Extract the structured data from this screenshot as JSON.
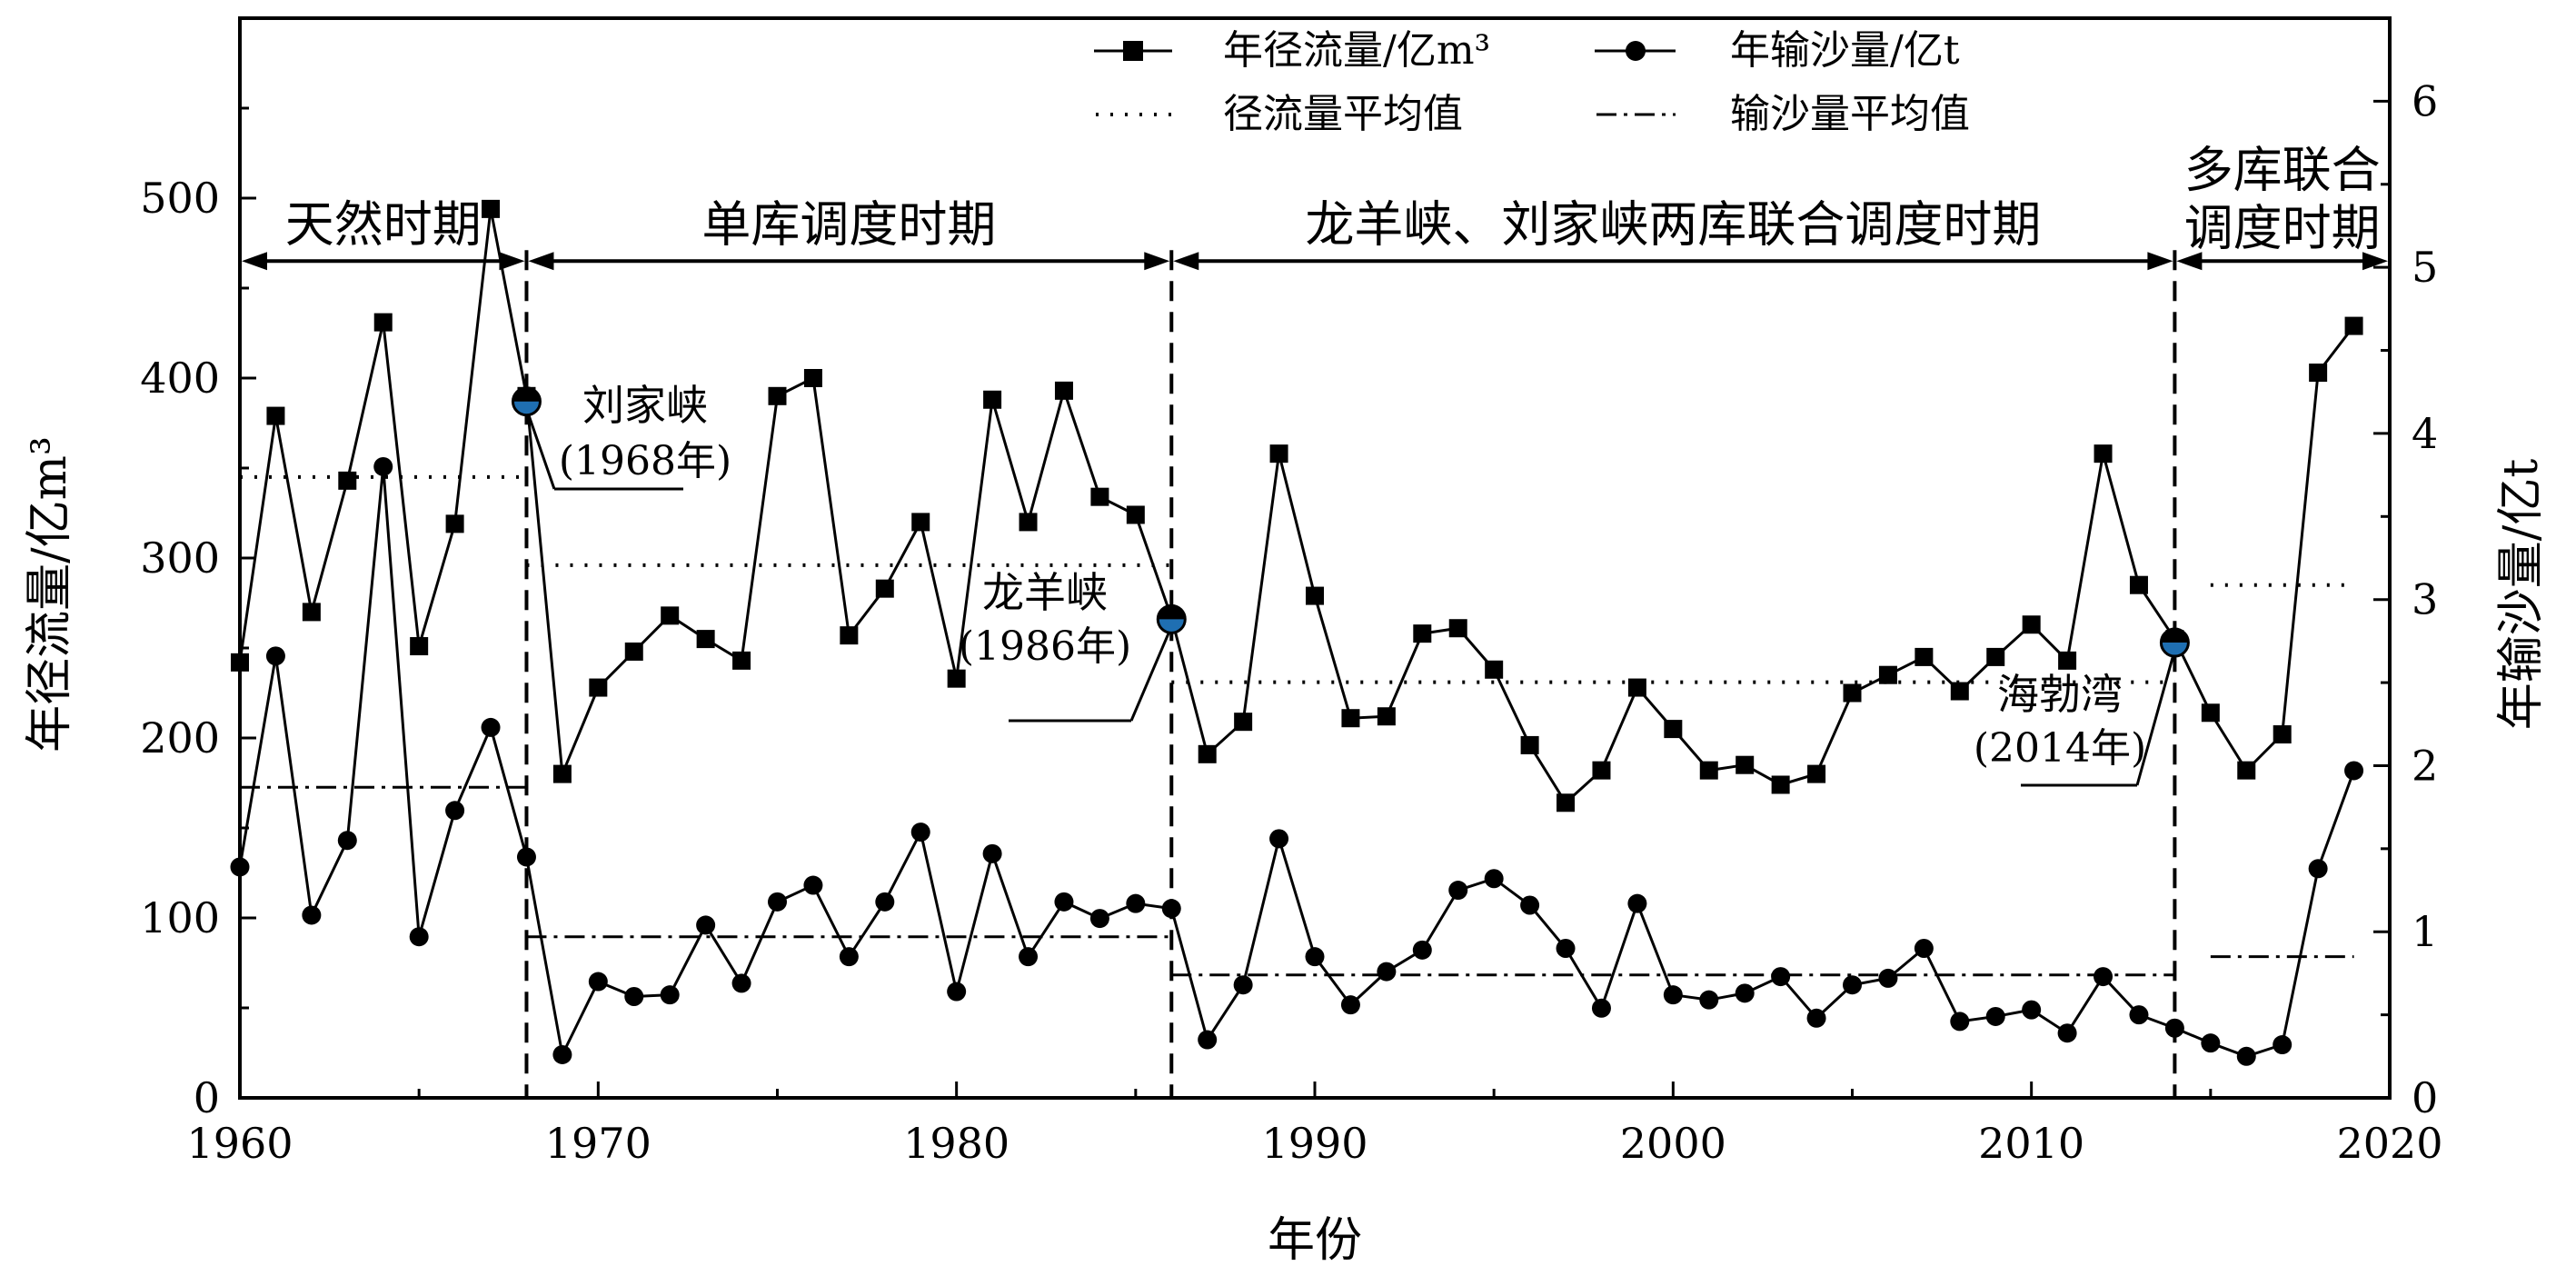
{
  "chart_data": {
    "type": "line",
    "xlabel": "年份",
    "ylabel_left": "年径流量/亿m³",
    "ylabel_right": "年输沙量/亿t",
    "xlim": [
      1960,
      2020
    ],
    "ylim_left": [
      0,
      600
    ],
    "ylim_right": [
      0,
      6.5
    ],
    "x_ticks": [
      1960,
      1970,
      1980,
      1990,
      2000,
      2010,
      2020
    ],
    "y_left_ticks": [
      0,
      100,
      200,
      300,
      400,
      500
    ],
    "y_right_ticks": [
      0,
      1,
      2,
      3,
      4,
      5,
      6
    ],
    "grid": false,
    "legend_position": "top",
    "legend": {
      "runoff": "年径流量/亿m³",
      "sediment": "年输沙量/亿t",
      "runoff_mean": "径流量平均值",
      "sediment_mean": "输沙量平均值"
    },
    "x": [
      1960,
      1961,
      1962,
      1963,
      1964,
      1965,
      1966,
      1967,
      1968,
      1969,
      1970,
      1971,
      1972,
      1973,
      1974,
      1975,
      1976,
      1977,
      1978,
      1979,
      1980,
      1981,
      1982,
      1983,
      1984,
      1985,
      1986,
      1987,
      1988,
      1989,
      1990,
      1991,
      1992,
      1993,
      1994,
      1995,
      1996,
      1997,
      1998,
      1999,
      2000,
      2001,
      2002,
      2003,
      2004,
      2005,
      2006,
      2007,
      2008,
      2009,
      2010,
      2011,
      2012,
      2013,
      2014,
      2015,
      2016,
      2017,
      2018,
      2019
    ],
    "series": [
      {
        "name": "年径流量/亿m³",
        "axis": "left",
        "marker": "square",
        "values": [
          242,
          379,
          270,
          343,
          431,
          251,
          319,
          494,
          390,
          180,
          228,
          248,
          268,
          255,
          243,
          390,
          400,
          257,
          283,
          320,
          233,
          388,
          320,
          393,
          334,
          324,
          267,
          191,
          209,
          358,
          279,
          211,
          212,
          258,
          261,
          238,
          196,
          164,
          182,
          228,
          205,
          182,
          185,
          174,
          180,
          225,
          235,
          245,
          226,
          245,
          263,
          243,
          358,
          285,
          255,
          214,
          182,
          202,
          403,
          429
        ]
      },
      {
        "name": "年输沙量/亿t",
        "axis": "right",
        "marker": "circle",
        "values": [
          1.39,
          2.66,
          1.1,
          1.55,
          3.8,
          0.97,
          1.73,
          2.23,
          1.45,
          0.26,
          0.7,
          0.61,
          0.62,
          1.04,
          0.69,
          1.18,
          1.28,
          0.85,
          1.18,
          1.6,
          0.64,
          1.47,
          0.85,
          1.18,
          1.08,
          1.17,
          1.14,
          0.35,
          0.68,
          1.56,
          0.85,
          0.56,
          0.76,
          0.89,
          1.25,
          1.32,
          1.16,
          0.9,
          0.54,
          1.17,
          0.62,
          0.59,
          0.63,
          0.73,
          0.48,
          0.68,
          0.72,
          0.9,
          0.46,
          0.49,
          0.53,
          0.39,
          0.73,
          0.5,
          0.42,
          0.33,
          0.25,
          0.32,
          1.38,
          1.97
        ]
      }
    ],
    "runoff_means": [
      {
        "from": 1960,
        "to": 1968,
        "value": 345
      },
      {
        "from": 1968,
        "to": 1986,
        "value": 296
      },
      {
        "from": 1986,
        "to": 2014,
        "value": 231
      },
      {
        "from": 2015,
        "to": 2019,
        "value": 285
      }
    ],
    "sediment_means": [
      {
        "from": 1960,
        "to": 1968,
        "value": 1.87
      },
      {
        "from": 1968,
        "to": 1986,
        "value": 0.97
      },
      {
        "from": 1986,
        "to": 2014,
        "value": 0.74
      },
      {
        "from": 2015,
        "to": 2019,
        "value": 0.85
      }
    ],
    "period_dividers": [
      1968,
      1986,
      2014
    ],
    "period_arrow_y": 465,
    "periods": [
      {
        "label": "天然时期",
        "from": 1960,
        "to": 1968
      },
      {
        "label": "单库调度时期",
        "from": 1968,
        "to": 1986
      },
      {
        "label": "龙羊峡、刘家峡两库联合调度时期",
        "from": 1986,
        "to": 2014
      },
      {
        "label": "多库联合",
        "label2": "调度时期",
        "from": 2014,
        "to": 2020
      }
    ],
    "reservoirs": [
      {
        "name": "刘家峡",
        "year_label": "(1968年)",
        "x": 1968,
        "y": 387
      },
      {
        "name": "龙羊峡",
        "year_label": "(1986年)",
        "x": 1986,
        "y": 266
      },
      {
        "name": "海勃湾",
        "year_label": "(2014年)",
        "x": 2014,
        "y": 253
      }
    ],
    "colors": {
      "line": "#000000",
      "reservoir_marker": "#1f6fb2"
    }
  }
}
